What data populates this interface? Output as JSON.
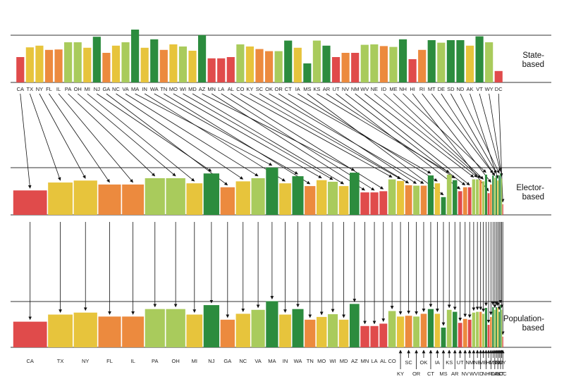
{
  "colors": {
    "red": "#e04b4b",
    "orange": "#ec8a3e",
    "yellow": "#e7c43c",
    "light_green": "#a9cb5c",
    "dark_green": "#2c8c3e",
    "line": "#222222",
    "arrow": "#111111"
  },
  "chart_data": {
    "type": "bar",
    "states": [
      "CA",
      "TX",
      "NY",
      "FL",
      "IL",
      "PA",
      "OH",
      "MI",
      "NJ",
      "GA",
      "NC",
      "VA",
      "MA",
      "IN",
      "WA",
      "TN",
      "MO",
      "WI",
      "MD",
      "AZ",
      "MN",
      "LA",
      "AL",
      "CO",
      "KY",
      "SC",
      "OK",
      "OR",
      "CT",
      "IA",
      "MS",
      "KS",
      "AR",
      "UT",
      "NV",
      "NM",
      "WV",
      "NE",
      "ID",
      "ME",
      "NH",
      "HI",
      "RI",
      "MT",
      "DE",
      "SD",
      "ND",
      "AK",
      "VT",
      "WY",
      "DC"
    ],
    "population_order": [
      "CA",
      "TX",
      "NY",
      "FL",
      "IL",
      "PA",
      "OH",
      "MI",
      "NJ",
      "GA",
      "NC",
      "VA",
      "MA",
      "IN",
      "WA",
      "TN",
      "MO",
      "WI",
      "MD",
      "AZ",
      "MN",
      "LA",
      "AL",
      "CO",
      "KY",
      "SC",
      "OR",
      "OK",
      "CT",
      "IA",
      "MS",
      "KS",
      "AR",
      "UT",
      "NV",
      "NM",
      "WV",
      "NE",
      "ID",
      "ME",
      "NH",
      "HI",
      "RI",
      "MT",
      "DE",
      "SD",
      "AK",
      "ND",
      "VT",
      "WY",
      "DC"
    ],
    "colors": [
      "red",
      "yellow",
      "yellow",
      "orange",
      "orange",
      "light_green",
      "light_green",
      "yellow",
      "dark_green",
      "orange",
      "yellow",
      "light_green",
      "dark_green",
      "yellow",
      "dark_green",
      "orange",
      "yellow",
      "light_green",
      "yellow",
      "dark_green",
      "red",
      "red",
      "red",
      "light_green",
      "yellow",
      "orange",
      "orange",
      "light_green",
      "dark_green",
      "yellow",
      "dark_green",
      "light_green",
      "dark_green",
      "red",
      "orange",
      "red",
      "light_green",
      "light_green",
      "orange",
      "light_green",
      "dark_green",
      "red",
      "orange",
      "dark_green",
      "light_green",
      "dark_green",
      "dark_green",
      "yellow",
      "dark_green",
      "light_green",
      "red"
    ],
    "top_values": [
      0.6,
      0.83,
      0.87,
      0.77,
      0.78,
      0.95,
      0.95,
      0.82,
      1.08,
      0.7,
      0.87,
      0.95,
      1.25,
      0.82,
      1.02,
      0.77,
      0.9,
      0.85,
      0.75,
      1.12,
      0.57,
      0.57,
      0.6,
      0.9,
      0.85,
      0.79,
      0.74,
      0.74,
      0.99,
      0.82,
      0.45,
      0.99,
      0.87,
      0.6,
      0.7,
      0.7,
      0.89,
      0.9,
      0.86,
      0.84,
      1.02,
      0.55,
      0.77,
      1.0,
      0.94,
      1.0,
      1.0,
      0.87,
      1.09,
      0.95,
      0.27
    ],
    "elector_values": [
      0.62,
      0.82,
      0.87,
      0.77,
      0.77,
      0.93,
      0.93,
      0.8,
      1.05,
      0.7,
      0.85,
      0.93,
      1.2,
      0.8,
      0.98,
      0.73,
      0.88,
      0.84,
      0.73,
      1.07,
      0.57,
      0.57,
      0.6,
      0.9,
      0.86,
      0.75,
      0.74,
      0.74,
      1.0,
      0.8,
      0.45,
      1.02,
      0.88,
      0.6,
      0.7,
      0.7,
      0.9,
      0.9,
      0.88,
      0.85,
      1.02,
      0.55,
      0.77,
      1.0,
      0.94,
      1.0,
      1.0,
      0.87,
      1.05,
      0.92,
      0.27
    ],
    "population_values": [
      0.65,
      0.83,
      0.88,
      0.78,
      0.78,
      0.97,
      0.97,
      0.83,
      1.07,
      0.7,
      0.85,
      0.95,
      1.17,
      0.83,
      0.97,
      0.7,
      0.77,
      0.84,
      0.7,
      1.1,
      0.54,
      0.54,
      0.6,
      0.92,
      0.78,
      0.8,
      0.85,
      0.78,
      0.97,
      0.85,
      0.5,
      0.95,
      0.9,
      0.62,
      0.72,
      0.7,
      0.88,
      0.9,
      0.9,
      0.85,
      1.0,
      0.57,
      0.77,
      1.02,
      0.95,
      1.02,
      0.9,
      1.0,
      1.07,
      0.95,
      0.27
    ],
    "panels": [
      "State-\nbased",
      "Elector-\nbased",
      "Population-\nbased"
    ]
  }
}
